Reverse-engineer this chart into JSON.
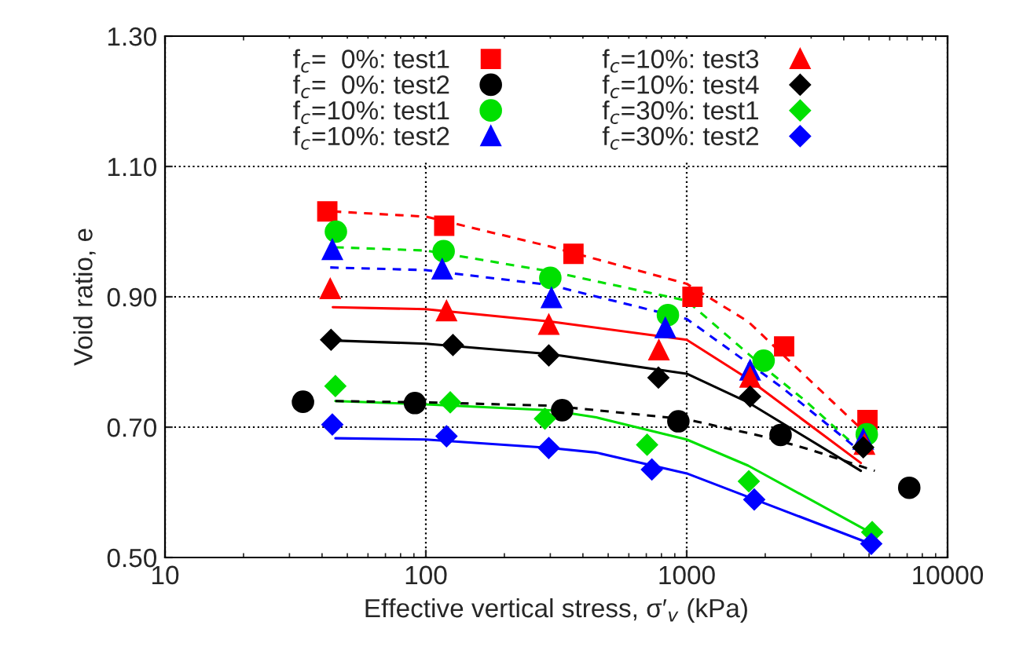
{
  "chart_data": {
    "type": "scatter",
    "xlabel": "Effective vertical stress, σ′$_{v}$ (kPa)",
    "ylabel": "Void ratio, e",
    "log": "x",
    "grid": true,
    "legend": "top",
    "xlim": [
      10,
      10000
    ],
    "xticks": [
      10,
      100,
      1000,
      10000
    ],
    "ylim": [
      0.5,
      1.3
    ],
    "yticks": [
      {
        "value": 0.5,
        "label": "0.50"
      },
      {
        "value": 0.7,
        "label": "0.70"
      },
      {
        "value": 0.9,
        "label": "0.90"
      },
      {
        "value": 1.1,
        "label": "1.10"
      },
      {
        "value": 1.3,
        "label": "1.30"
      }
    ],
    "series": [
      {
        "name": "f$_{c}$=  0%: test1",
        "color": "#ff0000",
        "marker": "square",
        "x": [
          41.9,
          117.6,
          368,
          1052,
          2363,
          4930
        ],
        "values": [
          1.031,
          1.009,
          0.966,
          0.9,
          0.824,
          0.711
        ]
      },
      {
        "name": "f$_{c}$=  0%: test2",
        "color": "#000000",
        "marker": "circle",
        "x": [
          33.8,
          90.8,
          333,
          929,
          2290,
          7130
        ],
        "values": [
          0.739,
          0.737,
          0.726,
          0.709,
          0.688,
          0.607
        ]
      },
      {
        "name": "f$_{c}$=10%: test1",
        "color": "#00e000",
        "marker": "circle",
        "x": [
          45.2,
          117,
          300,
          847,
          1972,
          4900
        ],
        "values": [
          1.0,
          0.97,
          0.929,
          0.872,
          0.802,
          0.689
        ]
      },
      {
        "name": "f$_{c}$=10%: test2",
        "color": "#0000ff",
        "marker": "triangle",
        "x": [
          43.8,
          115.5,
          303,
          828,
          1750,
          4750
        ],
        "values": [
          0.972,
          0.942,
          0.898,
          0.852,
          0.787,
          0.681
        ]
      },
      {
        "name": "f$_{c}$=10%: test3",
        "color": "#ff0000",
        "marker": "triangle",
        "x": [
          43,
          120,
          296,
          782,
          1750,
          4800
        ],
        "values": [
          0.912,
          0.878,
          0.857,
          0.818,
          0.776,
          0.673
        ]
      },
      {
        "name": "f$_{c}$=10%: test4",
        "color": "#000000",
        "marker": "diamond",
        "x": [
          43.3,
          127,
          296,
          779,
          1750,
          4750
        ],
        "values": [
          0.834,
          0.826,
          0.81,
          0.776,
          0.747,
          0.669
        ]
      },
      {
        "name": "f$_{c}$=30%: test1",
        "color": "#00e000",
        "marker": "diamond",
        "x": [
          45,
          124,
          286,
          705,
          1730,
          5140
        ],
        "values": [
          0.763,
          0.738,
          0.713,
          0.673,
          0.617,
          0.539
        ]
      },
      {
        "name": "f$_{c}$=30%: test2",
        "color": "#0000ff",
        "marker": "diamond",
        "x": [
          43.8,
          120,
          296,
          735,
          1815,
          5100
        ],
        "values": [
          0.704,
          0.686,
          0.668,
          0.635,
          0.589,
          0.521
        ]
      },
      {
        "type": "line",
        "color": "#ff0000",
        "line_style": "dashed",
        "x": [
          44,
          100,
          300,
          1000,
          1720,
          2500,
          4650
        ],
        "values": [
          1.031,
          1.023,
          0.977,
          0.92,
          0.862,
          0.8,
          0.698
        ]
      },
      {
        "type": "line",
        "color": "#00e000",
        "line_style": "dashed",
        "x": [
          45,
          100,
          300,
          1000,
          2000,
          2820,
          4380
        ],
        "values": [
          0.976,
          0.971,
          0.939,
          0.894,
          0.79,
          0.742,
          0.673
        ]
      },
      {
        "type": "line",
        "color": "#0000ff",
        "line_style": "dashed",
        "x": [
          43,
          100,
          300,
          1000,
          2300,
          4500
        ],
        "values": [
          0.945,
          0.941,
          0.918,
          0.866,
          0.762,
          0.667
        ]
      },
      {
        "type": "line",
        "color": "#000000",
        "line_style": "dashed",
        "x": [
          45,
          100,
          300,
          1000,
          2000,
          3000,
          5260
        ],
        "values": [
          0.74,
          0.738,
          0.733,
          0.712,
          0.685,
          0.665,
          0.633
        ]
      },
      {
        "type": "line",
        "color": "#ff0000",
        "line_style": "solid",
        "x": [
          44,
          100,
          300,
          1000,
          1720,
          4650
        ],
        "values": [
          0.884,
          0.881,
          0.862,
          0.834,
          0.774,
          0.645
        ]
      },
      {
        "type": "line",
        "color": "#000000",
        "line_style": "solid",
        "x": [
          44,
          100,
          300,
          1000,
          1720,
          4650
        ],
        "values": [
          0.833,
          0.828,
          0.812,
          0.782,
          0.738,
          0.633
        ]
      },
      {
        "type": "line",
        "color": "#00e000",
        "line_style": "solid",
        "x": [
          45,
          100,
          300,
          450,
          1000,
          1720,
          5140
        ],
        "values": [
          0.74,
          0.735,
          0.726,
          0.715,
          0.681,
          0.641,
          0.537
        ]
      },
      {
        "type": "line",
        "color": "#0000ff",
        "line_style": "solid",
        "x": [
          45,
          100,
          300,
          450,
          1000,
          1720,
          5000
        ],
        "values": [
          0.683,
          0.681,
          0.668,
          0.661,
          0.629,
          0.593,
          0.522
        ]
      }
    ]
  }
}
